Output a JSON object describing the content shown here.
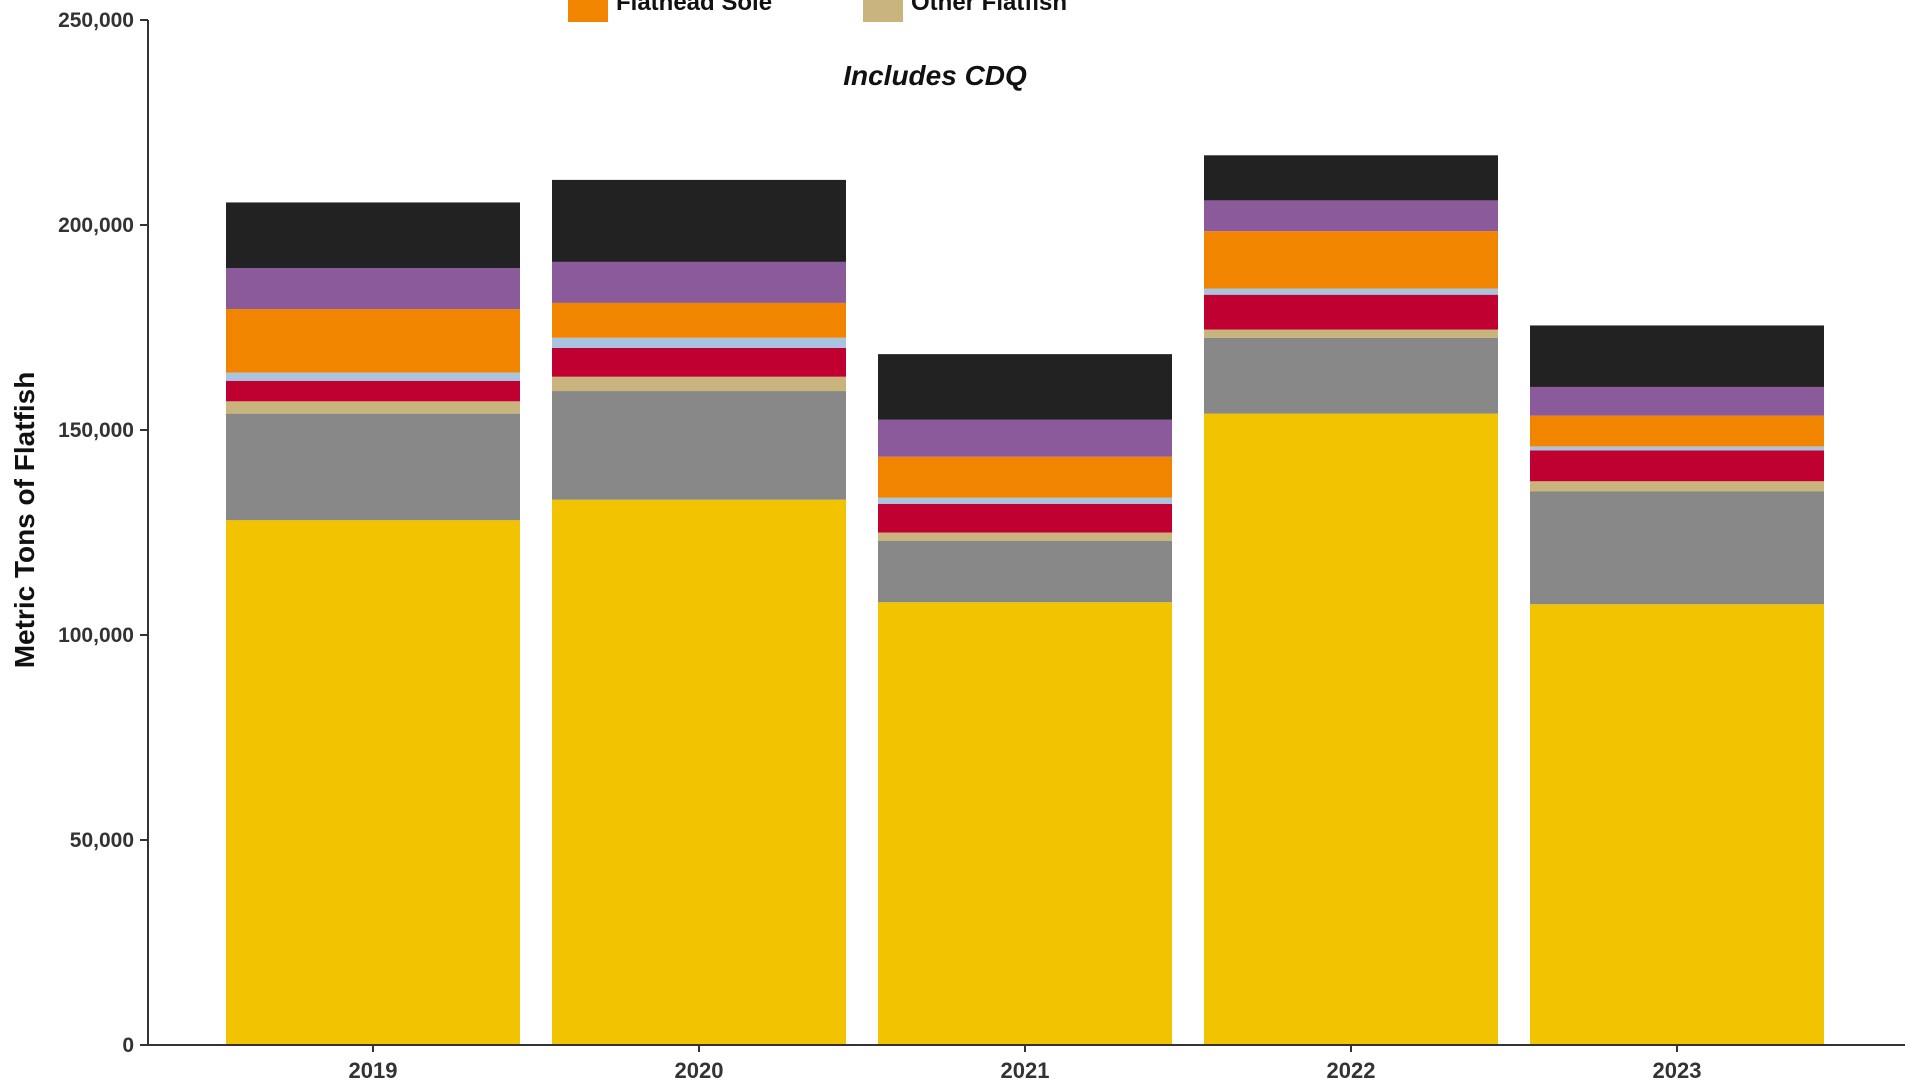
{
  "chart_data": {
    "type": "bar",
    "stacked": true,
    "subtitle": "Includes CDQ",
    "xlabel": "",
    "ylabel": "Metric Tons of Flatfish",
    "ylim": [
      0,
      250000
    ],
    "yticks": [
      0,
      50000,
      100000,
      150000,
      200000,
      250000
    ],
    "ytick_labels": [
      "0",
      "50,000",
      "100,000",
      "150,000",
      "200,000",
      "250,000"
    ],
    "categories": [
      "2019",
      "2020",
      "2021",
      "2022",
      "2023"
    ],
    "legend_visible": [
      {
        "label": "Flathead Sole",
        "color": "#f28500"
      },
      {
        "label": "Other Flatfish",
        "color": "#c8b47c"
      }
    ],
    "series": [
      {
        "color": "#f2c300",
        "values": [
          128000,
          133000,
          108000,
          154000,
          107500
        ]
      },
      {
        "color": "#888888",
        "values": [
          26000,
          26500,
          15000,
          18500,
          27500
        ]
      },
      {
        "color": "#c8b47c",
        "values": [
          3000,
          3500,
          2000,
          2000,
          2500
        ]
      },
      {
        "color": "#c00030",
        "values": [
          5000,
          7000,
          7000,
          8500,
          7500
        ]
      },
      {
        "color": "#a8c4e0",
        "values": [
          2000,
          2500,
          1500,
          1500,
          1000
        ]
      },
      {
        "name": "Flathead Sole",
        "color": "#f28500",
        "values": [
          15500,
          8500,
          10000,
          14000,
          7500
        ]
      },
      {
        "color": "#8a5a9a",
        "values": [
          10000,
          10000,
          9000,
          7500,
          7000
        ]
      },
      {
        "color": "#222222",
        "values": [
          16000,
          20000,
          16000,
          11000,
          15000
        ]
      }
    ]
  }
}
